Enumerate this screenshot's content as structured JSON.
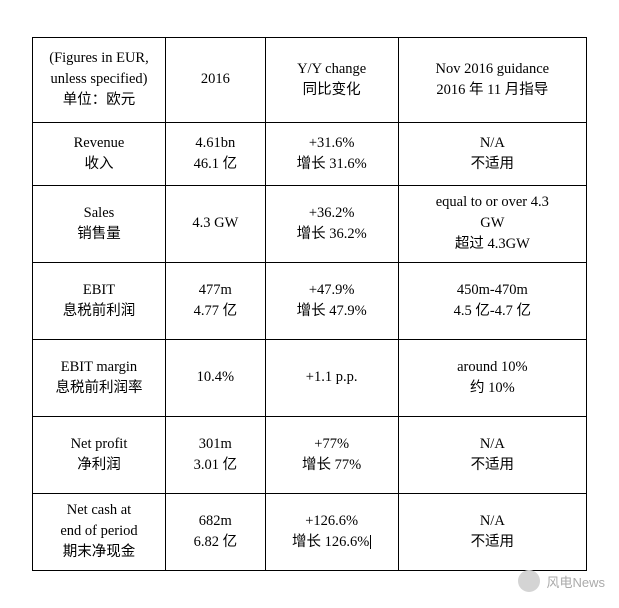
{
  "table": {
    "border_color": "#000000",
    "background_color": "#ffffff",
    "text_color": "#000000",
    "font_family": "Times New Roman, serif",
    "base_fontsize": 14.5,
    "column_widths_pct": [
      24,
      18,
      24,
      34
    ],
    "header": {
      "col1_line1": "(Figures in EUR,",
      "col1_line2": "unless specified)",
      "col1_line3": "单位：欧元",
      "col2_line1": "2016",
      "col3_line1": "Y/Y change",
      "col3_line2": "同比变化",
      "col4_line1": "Nov 2016 guidance",
      "col4_line2": "2016 年 11 月指导"
    },
    "rows": [
      {
        "c1l1": "Revenue",
        "c1l2": "收入",
        "c2l1": "4.61bn",
        "c2l2": "46.1 亿",
        "c3l1": "+31.6%",
        "c3l2": "增长 31.6%",
        "c4l1": "N/A",
        "c4l2": "不适用",
        "c4l3": ""
      },
      {
        "c1l1": "Sales",
        "c1l2": "销售量",
        "c2l1": "4.3 GW",
        "c2l2": "",
        "c3l1": "+36.2%",
        "c3l2": "增长 36.2%",
        "c4l1": "equal to or over 4.3",
        "c4l2": "GW",
        "c4l3": "超过 4.3GW"
      },
      {
        "c1l1": "EBIT",
        "c1l2": "息税前利润",
        "c2l1": "477m",
        "c2l2": "4.77 亿",
        "c3l1": "+47.9%",
        "c3l2": "增长 47.9%",
        "c4l1": "450m-470m",
        "c4l2": "4.5 亿-4.7 亿",
        "c4l3": ""
      },
      {
        "c1l1": "EBIT margin",
        "c1l2": "息税前利润率",
        "c2l1": "10.4%",
        "c2l2": "",
        "c3l1": "+1.1 p.p.",
        "c3l2": "",
        "c4l1": "around 10%",
        "c4l2": "约 10%",
        "c4l3": ""
      },
      {
        "c1l1": "Net profit",
        "c1l2": "净利润",
        "c2l1": "301m",
        "c2l2": "3.01 亿",
        "c3l1": "+77%",
        "c3l2": "增长 77%",
        "c4l1": "N/A",
        "c4l2": "不适用",
        "c4l3": ""
      },
      {
        "c1l1": "Net cash at",
        "c1l2": "end of period",
        "c1l3": "期末净现金",
        "c2l1": "682m",
        "c2l2": "6.82 亿",
        "c3l1": "+126.6%",
        "c3l2": "增长 126.6%",
        "c3cursor": true,
        "c4l1": "N/A",
        "c4l2": "不适用",
        "c4l3": ""
      }
    ]
  },
  "watermark": {
    "text": "风电News",
    "color": "#aaaaaa"
  }
}
